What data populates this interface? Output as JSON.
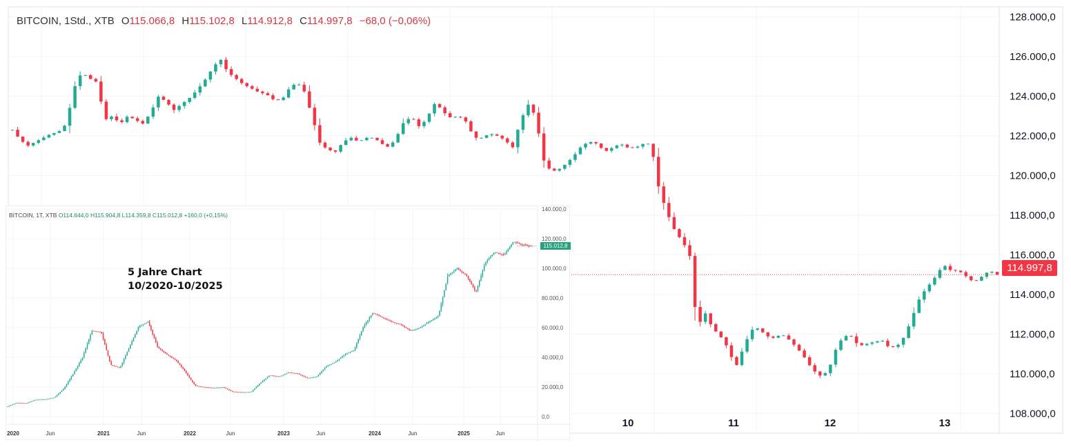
{
  "main_legend": {
    "symbol": "BITCOIN, 1Std., XTB",
    "open_label": "O",
    "open": "115.066,8",
    "high_label": "H",
    "high": "115.102,8",
    "low_label": "L",
    "low": "114.912,8",
    "close_label": "C",
    "close": "114.997,8",
    "change": "−68,0 (−0,06%)"
  },
  "last_price_tag": "114.997,8",
  "inset_legend": {
    "symbol": "BITCOIN, 1T, XTB",
    "values": "O114.644,0 H115.904,8 L114.359,8 C115.012,8 +160,0 (+0,15%)"
  },
  "inset_price_tag": "115.012,8",
  "annotation": {
    "line1": "5 Jahre Chart",
    "line2": "10/2020-10/2025"
  },
  "colors": {
    "up": "#22ab94",
    "down": "#f23645",
    "grid": "#f0f3fa",
    "axis_text": "#131722"
  },
  "chart_data": [
    {
      "type": "candlestick",
      "title": "BITCOIN, 1Std., XTB",
      "y_axis_ticks": [
        "128.000,0",
        "126.000,0",
        "124.000,0",
        "122.000,0",
        "120.000,0",
        "118.000,0",
        "116.000,0",
        "114.000,0",
        "112.000,0",
        "110.000,0",
        "108.000,0"
      ],
      "x_axis_ticks": [
        "10",
        "11",
        "12",
        "13"
      ],
      "ylim": [
        107000,
        128500
      ],
      "last_price": 114997.8,
      "close_path": [
        122300,
        121800,
        121500,
        121700,
        121900,
        122100,
        122200,
        122600,
        124400,
        125200,
        124900,
        124700,
        122800,
        123000,
        122600,
        123000,
        122800,
        122600,
        123200,
        124000,
        123700,
        123300,
        123600,
        123900,
        124300,
        124800,
        125400,
        125900,
        125200,
        124900,
        124600,
        124400,
        124200,
        124100,
        123800,
        123800,
        124400,
        124700,
        124200,
        122900,
        121600,
        121300,
        121200,
        121700,
        121900,
        121700,
        121900,
        121900,
        121600,
        121400,
        122000,
        122800,
        122900,
        122400,
        123000,
        123700,
        123200,
        122900,
        123000,
        122700,
        121900,
        121900,
        122100,
        122000,
        121800,
        121400,
        122700,
        123600,
        123000,
        120800,
        120200,
        120300,
        120600,
        121000,
        121500,
        121700,
        121600,
        121200,
        121400,
        121600,
        121400,
        121400,
        121600,
        121600,
        119400,
        118200,
        117300,
        116700,
        116100,
        112300,
        113100,
        112300,
        111900,
        111300,
        110300,
        111300,
        112200,
        112300,
        111900,
        111800,
        112000,
        111700,
        111300,
        110800,
        110200,
        109900,
        110100,
        111200,
        111900,
        111900,
        111400,
        111500,
        111600,
        111700,
        111300,
        111400,
        111900,
        112900,
        113900,
        114400,
        114900,
        115500,
        115200,
        115200,
        114900,
        114600,
        114900,
        115200,
        115000
      ]
    },
    {
      "type": "candlestick",
      "title": "BITCOIN, 1T, XTB",
      "y_axis_ticks": [
        "140.000,0",
        "120.000,0",
        "100.000,0",
        "80.000,0",
        "60.000,0",
        "40.000,0",
        "20.000,0",
        "0,0"
      ],
      "x_axis_ticks": [
        "2020",
        "Jun",
        "2021",
        "Jun",
        "2022",
        "Jun",
        "2023",
        "Jun",
        "2024",
        "Jun",
        "2025",
        "Jun"
      ],
      "ylim": [
        -5000,
        140000
      ],
      "last_price": 115012.8,
      "close_path": [
        7000,
        9500,
        9200,
        11500,
        11800,
        13000,
        19000,
        29000,
        40000,
        58000,
        57000,
        35000,
        33000,
        47000,
        61000,
        64000,
        47000,
        42000,
        38000,
        30000,
        21000,
        20000,
        19500,
        20000,
        17000,
        16600,
        16800,
        23000,
        28000,
        27000,
        30000,
        29000,
        26000,
        27000,
        34000,
        37000,
        42000,
        45000,
        61000,
        70000,
        67000,
        64000,
        62000,
        58000,
        60000,
        64000,
        68000,
        95000,
        100000,
        95000,
        84000,
        104000,
        111000,
        109000,
        118000,
        116000,
        115000
      ]
    }
  ]
}
